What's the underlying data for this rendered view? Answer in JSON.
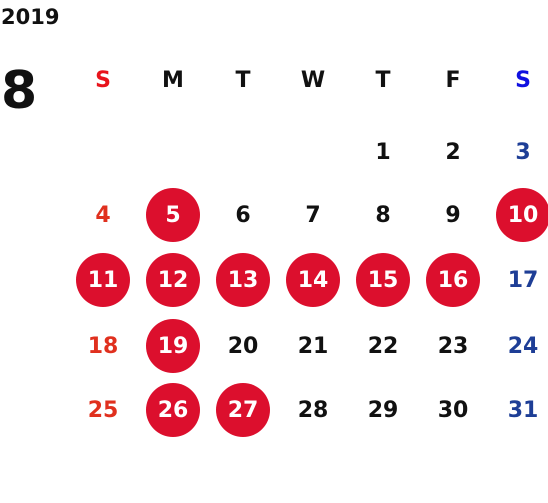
{
  "header": {
    "year": "2019",
    "month": "8"
  },
  "weekdays": [
    "S",
    "M",
    "T",
    "W",
    "T",
    "F",
    "S"
  ],
  "weeks": [
    [
      null,
      null,
      null,
      null,
      "1",
      "2",
      "3"
    ],
    [
      "4",
      {
        "label": "5",
        "marked": true
      },
      "6",
      "7",
      "8",
      "9",
      {
        "label": "10",
        "marked": true
      }
    ],
    [
      {
        "label": "11",
        "marked": true
      },
      {
        "label": "12",
        "marked": true
      },
      {
        "label": "13",
        "marked": true
      },
      {
        "label": "14",
        "marked": true
      },
      {
        "label": "15",
        "marked": true
      },
      {
        "label": "16",
        "marked": true
      },
      "17"
    ],
    [
      "18",
      {
        "label": "19",
        "marked": true
      },
      "20",
      "21",
      "22",
      "23",
      "24"
    ],
    [
      "25",
      {
        "label": "26",
        "marked": true
      },
      {
        "label": "27",
        "marked": true
      },
      "28",
      "29",
      "30",
      "31"
    ]
  ]
}
